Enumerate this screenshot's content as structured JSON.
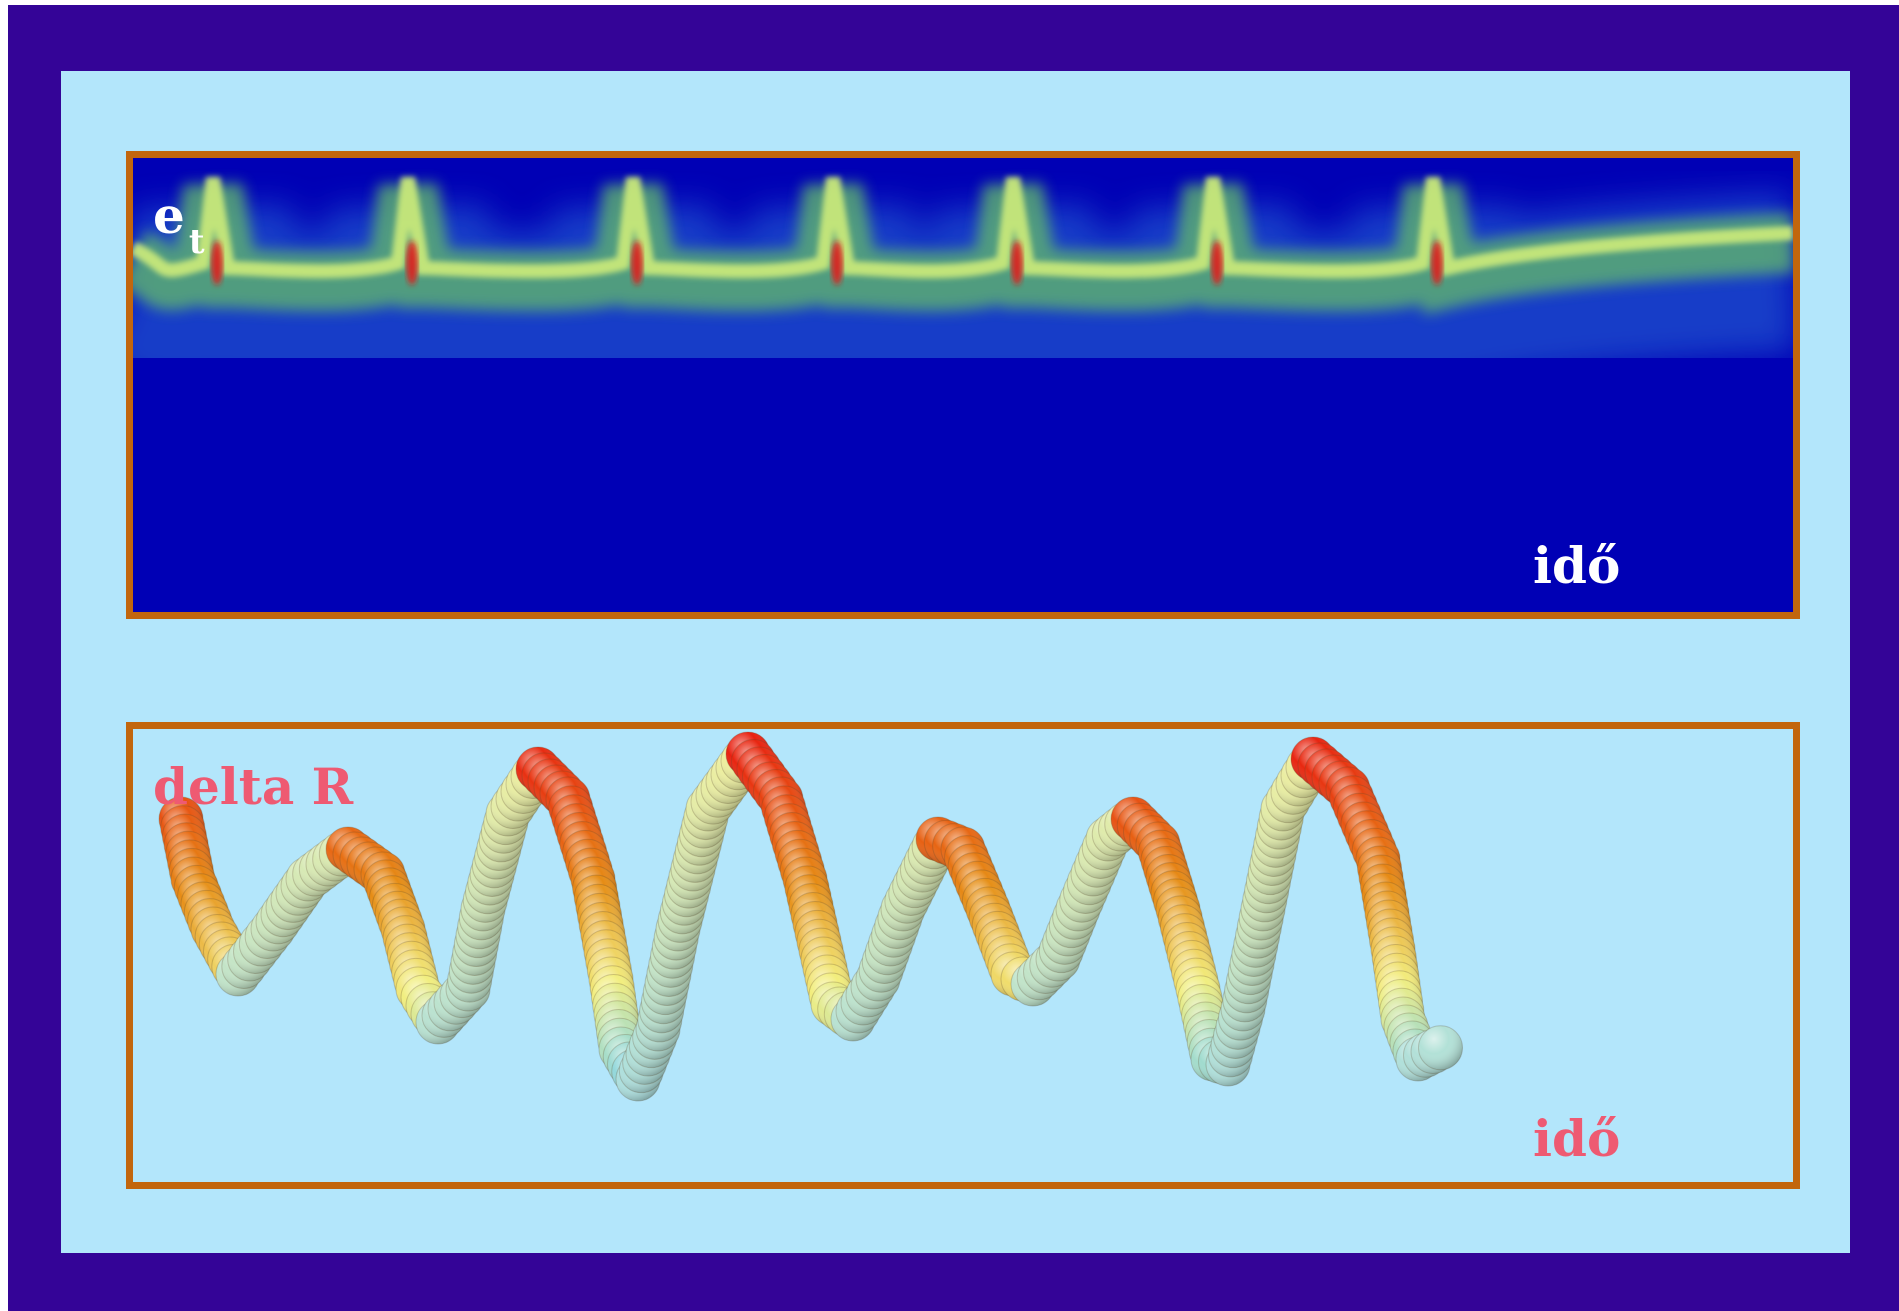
{
  "top_panel": {
    "ylabel": "e",
    "ylabel_sub": "t",
    "xlabel": "idő",
    "colors": {
      "background": "#0000b5",
      "wave": "#c8e87a",
      "peak": "#e81818",
      "frame": "#c2660d"
    }
  },
  "bottom_panel": {
    "ylabel": "delta R",
    "xlabel": "idő",
    "colors": {
      "label": "#ee5a72",
      "frame": "#c2660d",
      "tube_low": "#8ad6e4",
      "tube_mid": "#f2ee7e",
      "tube_high": "#e81c10"
    }
  },
  "colors": {
    "outer_frame": "#340497",
    "inner_background": "#b3e6fb"
  }
}
